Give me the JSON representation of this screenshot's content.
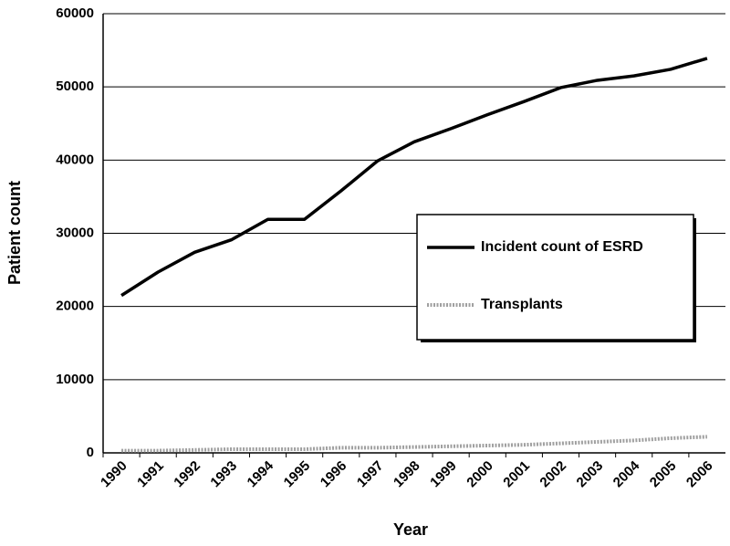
{
  "chart_data": {
    "type": "line",
    "x_label": "Year",
    "y_label": "Patient count",
    "categories": [
      "1990",
      "1991",
      "1992",
      "1993",
      "1994",
      "1995",
      "1996",
      "1997",
      "1998",
      "1999",
      "2000",
      "2001",
      "2002",
      "2003",
      "2004",
      "2005",
      "2006"
    ],
    "series": [
      {
        "name": "Incident count of ESRD",
        "color": "#000000",
        "values": [
          21500,
          24700,
          27400,
          29100,
          31900,
          31900,
          35800,
          39900,
          42500,
          44300,
          46200,
          48000,
          49900,
          50900,
          51500,
          52400,
          53900
        ]
      },
      {
        "name": "Transplants",
        "color": "#a0a0a0",
        "values": [
          300,
          300,
          400,
          500,
          500,
          500,
          700,
          700,
          800,
          900,
          1000,
          1100,
          1300,
          1500,
          1700,
          2000,
          2200
        ]
      }
    ],
    "ylim": [
      0,
      60000
    ],
    "yticks": [
      0,
      10000,
      20000,
      30000,
      40000,
      50000,
      60000
    ],
    "grid": true
  }
}
